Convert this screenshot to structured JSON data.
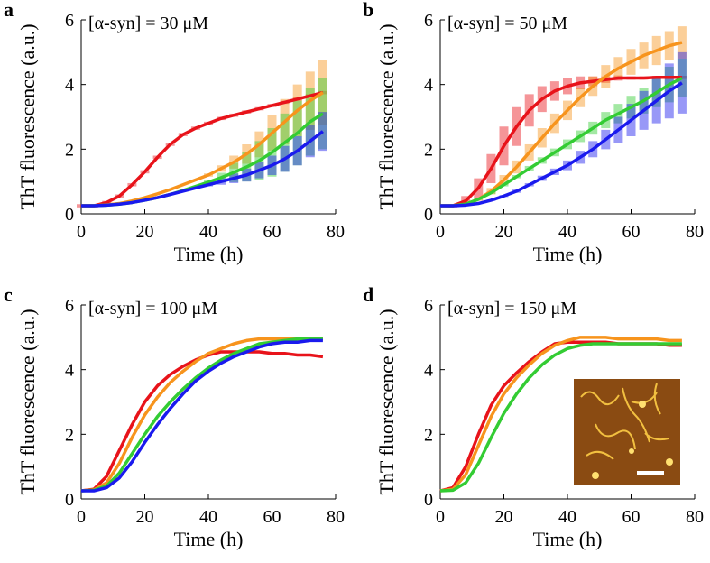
{
  "chart_data": [
    {
      "type": "line",
      "label": "a",
      "annotation": "[α-syn] = 30 μM",
      "xlabel": "Time (h)",
      "ylabel": "ThT fluorescence (a.u.)",
      "xlim": [
        0,
        80
      ],
      "ylim": [
        0,
        6
      ],
      "xticks": [
        0,
        20,
        40,
        60,
        80
      ],
      "yticks": [
        0,
        2,
        4,
        6
      ],
      "x": [
        0,
        4,
        8,
        12,
        16,
        20,
        24,
        28,
        32,
        36,
        40,
        44,
        48,
        52,
        56,
        60,
        64,
        68,
        72,
        76
      ],
      "series": [
        {
          "color": "#e8131a",
          "values": [
            0.25,
            0.25,
            0.35,
            0.55,
            0.9,
            1.3,
            1.75,
            2.15,
            2.45,
            2.65,
            2.8,
            2.95,
            3.05,
            3.15,
            3.25,
            3.35,
            3.45,
            3.55,
            3.65,
            3.75
          ],
          "errors": [
            0.05,
            0.05,
            0.05,
            0.05,
            0.05,
            0.05,
            0.05,
            0.05,
            0.05,
            0.05,
            0.05,
            0.05,
            0.05,
            0.05,
            0.05,
            0.05,
            0.05,
            0.05,
            0.05,
            0.05
          ]
        },
        {
          "color": "#f7941d",
          "values": [
            0.25,
            0.25,
            0.28,
            0.32,
            0.4,
            0.5,
            0.62,
            0.75,
            0.9,
            1.05,
            1.2,
            1.4,
            1.6,
            1.85,
            2.15,
            2.5,
            2.85,
            3.2,
            3.5,
            3.75
          ],
          "errors": [
            0,
            0,
            0,
            0,
            0,
            0,
            0,
            0,
            0,
            0,
            0.05,
            0.1,
            0.2,
            0.3,
            0.4,
            0.55,
            0.7,
            0.8,
            0.9,
            1.0
          ]
        },
        {
          "color": "#33cc33",
          "values": [
            0.25,
            0.25,
            0.27,
            0.3,
            0.35,
            0.42,
            0.5,
            0.6,
            0.72,
            0.85,
            0.98,
            1.12,
            1.28,
            1.45,
            1.65,
            1.9,
            2.2,
            2.5,
            2.85,
            3.1
          ],
          "errors": [
            0,
            0,
            0,
            0,
            0,
            0,
            0,
            0,
            0,
            0,
            0.05,
            0.15,
            0.3,
            0.45,
            0.6,
            0.75,
            0.9,
            1.0,
            1.05,
            1.1
          ]
        },
        {
          "color": "#1a1aee",
          "values": [
            0.25,
            0.25,
            0.27,
            0.3,
            0.35,
            0.42,
            0.5,
            0.6,
            0.7,
            0.8,
            0.9,
            1.0,
            1.1,
            1.2,
            1.35,
            1.5,
            1.7,
            1.95,
            2.25,
            2.55
          ],
          "errors": [
            0,
            0,
            0,
            0,
            0,
            0,
            0,
            0,
            0,
            0,
            0.05,
            0.1,
            0.15,
            0.2,
            0.25,
            0.3,
            0.4,
            0.45,
            0.5,
            0.6
          ]
        }
      ]
    },
    {
      "type": "line",
      "label": "b",
      "annotation": "[α-syn] = 50 μM",
      "xlabel": "Time (h)",
      "ylabel": "ThT fluorescence (a.u.)",
      "xlim": [
        0,
        80
      ],
      "ylim": [
        0,
        6
      ],
      "xticks": [
        0,
        20,
        40,
        60,
        80
      ],
      "yticks": [
        0,
        2,
        4,
        6
      ],
      "x": [
        0,
        4,
        8,
        12,
        16,
        20,
        24,
        28,
        32,
        36,
        40,
        44,
        48,
        52,
        56,
        60,
        64,
        68,
        72,
        76
      ],
      "series": [
        {
          "color": "#e8131a",
          "values": [
            0.25,
            0.25,
            0.4,
            0.8,
            1.4,
            2.1,
            2.7,
            3.2,
            3.55,
            3.8,
            3.95,
            4.05,
            4.1,
            4.15,
            4.2,
            4.2,
            4.2,
            4.22,
            4.22,
            4.22
          ],
          "errors": [
            0,
            0.05,
            0.15,
            0.3,
            0.45,
            0.6,
            0.6,
            0.5,
            0.4,
            0.3,
            0.25,
            0.2,
            0.15,
            0.1,
            0.08,
            0.05,
            0.05,
            0.05,
            0.05,
            0.05
          ]
        },
        {
          "color": "#f7941d",
          "values": [
            0.25,
            0.25,
            0.3,
            0.45,
            0.7,
            1.05,
            1.45,
            1.9,
            2.35,
            2.8,
            3.2,
            3.6,
            3.95,
            4.25,
            4.5,
            4.7,
            4.9,
            5.05,
            5.2,
            5.3
          ],
          "errors": [
            0,
            0,
            0.02,
            0.05,
            0.1,
            0.15,
            0.2,
            0.25,
            0.3,
            0.3,
            0.3,
            0.3,
            0.3,
            0.35,
            0.35,
            0.4,
            0.4,
            0.45,
            0.45,
            0.5
          ]
        },
        {
          "color": "#33cc33",
          "values": [
            0.25,
            0.25,
            0.3,
            0.45,
            0.65,
            0.9,
            1.15,
            1.4,
            1.65,
            1.9,
            2.15,
            2.4,
            2.65,
            2.9,
            3.1,
            3.3,
            3.5,
            3.75,
            4.0,
            4.2
          ],
          "errors": [
            0,
            0,
            0,
            0.02,
            0.03,
            0.05,
            0.05,
            0.08,
            0.1,
            0.12,
            0.15,
            0.18,
            0.2,
            0.25,
            0.3,
            0.35,
            0.4,
            0.45,
            0.55,
            0.6
          ]
        },
        {
          "color": "#1a1aee",
          "values": [
            0.25,
            0.25,
            0.27,
            0.32,
            0.42,
            0.55,
            0.7,
            0.9,
            1.1,
            1.3,
            1.5,
            1.75,
            2.0,
            2.3,
            2.6,
            2.9,
            3.2,
            3.5,
            3.8,
            4.05
          ],
          "errors": [
            0,
            0,
            0,
            0,
            0.02,
            0.03,
            0.05,
            0.05,
            0.08,
            0.1,
            0.15,
            0.2,
            0.25,
            0.3,
            0.4,
            0.5,
            0.6,
            0.7,
            0.85,
            0.95
          ]
        }
      ]
    },
    {
      "type": "line",
      "label": "c",
      "annotation": "[α-syn] = 100 μM",
      "xlabel": "Time (h)",
      "ylabel": "ThT fluorescence (a.u.)",
      "xlim": [
        0,
        80
      ],
      "ylim": [
        0,
        6
      ],
      "xticks": [
        0,
        20,
        40,
        60,
        80
      ],
      "yticks": [
        0,
        2,
        4,
        6
      ],
      "x": [
        0,
        4,
        8,
        12,
        16,
        20,
        24,
        28,
        32,
        36,
        40,
        44,
        48,
        52,
        56,
        60,
        64,
        68,
        72,
        76
      ],
      "series": [
        {
          "color": "#e8131a",
          "values": [
            0.25,
            0.3,
            0.7,
            1.5,
            2.3,
            3.0,
            3.5,
            3.85,
            4.1,
            4.3,
            4.45,
            4.55,
            4.55,
            4.55,
            4.55,
            4.5,
            4.5,
            4.45,
            4.45,
            4.4
          ]
        },
        {
          "color": "#f7941d",
          "values": [
            0.25,
            0.28,
            0.5,
            1.1,
            1.9,
            2.6,
            3.15,
            3.6,
            3.95,
            4.25,
            4.5,
            4.65,
            4.8,
            4.9,
            4.95,
            4.95,
            4.95,
            4.95,
            4.95,
            4.95
          ]
        },
        {
          "color": "#33cc33",
          "values": [
            0.25,
            0.27,
            0.4,
            0.8,
            1.4,
            2.0,
            2.55,
            3.0,
            3.4,
            3.75,
            4.05,
            4.3,
            4.5,
            4.65,
            4.8,
            4.85,
            4.9,
            4.95,
            4.95,
            4.95
          ]
        },
        {
          "color": "#1a1aee",
          "values": [
            0.25,
            0.25,
            0.35,
            0.65,
            1.15,
            1.75,
            2.3,
            2.8,
            3.25,
            3.65,
            3.95,
            4.2,
            4.4,
            4.55,
            4.7,
            4.8,
            4.85,
            4.85,
            4.9,
            4.9
          ]
        }
      ]
    },
    {
      "type": "line",
      "label": "d",
      "annotation": "[α-syn] = 150 μM",
      "xlabel": "Time (h)",
      "ylabel": "ThT fluorescence (a.u.)",
      "xlim": [
        0,
        80
      ],
      "ylim": [
        0,
        6
      ],
      "xticks": [
        0,
        20,
        40,
        60,
        80
      ],
      "yticks": [
        0,
        2,
        4,
        6
      ],
      "x": [
        0,
        4,
        8,
        12,
        16,
        20,
        24,
        28,
        32,
        36,
        40,
        44,
        48,
        52,
        56,
        60,
        64,
        68,
        72,
        76
      ],
      "series": [
        {
          "color": "#e8131a",
          "values": [
            0.25,
            0.35,
            1.0,
            2.0,
            2.9,
            3.5,
            3.9,
            4.25,
            4.55,
            4.8,
            4.85,
            4.85,
            4.85,
            4.85,
            4.8,
            4.8,
            4.8,
            4.8,
            4.75,
            4.75
          ]
        },
        {
          "color": "#f7941d",
          "values": [
            0.25,
            0.3,
            0.75,
            1.65,
            2.55,
            3.25,
            3.75,
            4.15,
            4.5,
            4.75,
            4.9,
            5.0,
            5.0,
            5.0,
            4.95,
            4.95,
            4.95,
            4.95,
            4.9,
            4.9
          ]
        },
        {
          "color": "#33cc33",
          "values": [
            0.25,
            0.27,
            0.5,
            1.1,
            1.9,
            2.65,
            3.25,
            3.75,
            4.15,
            4.45,
            4.65,
            4.75,
            4.8,
            4.8,
            4.8,
            4.8,
            4.8,
            4.8,
            4.8,
            4.8
          ]
        }
      ]
    }
  ]
}
